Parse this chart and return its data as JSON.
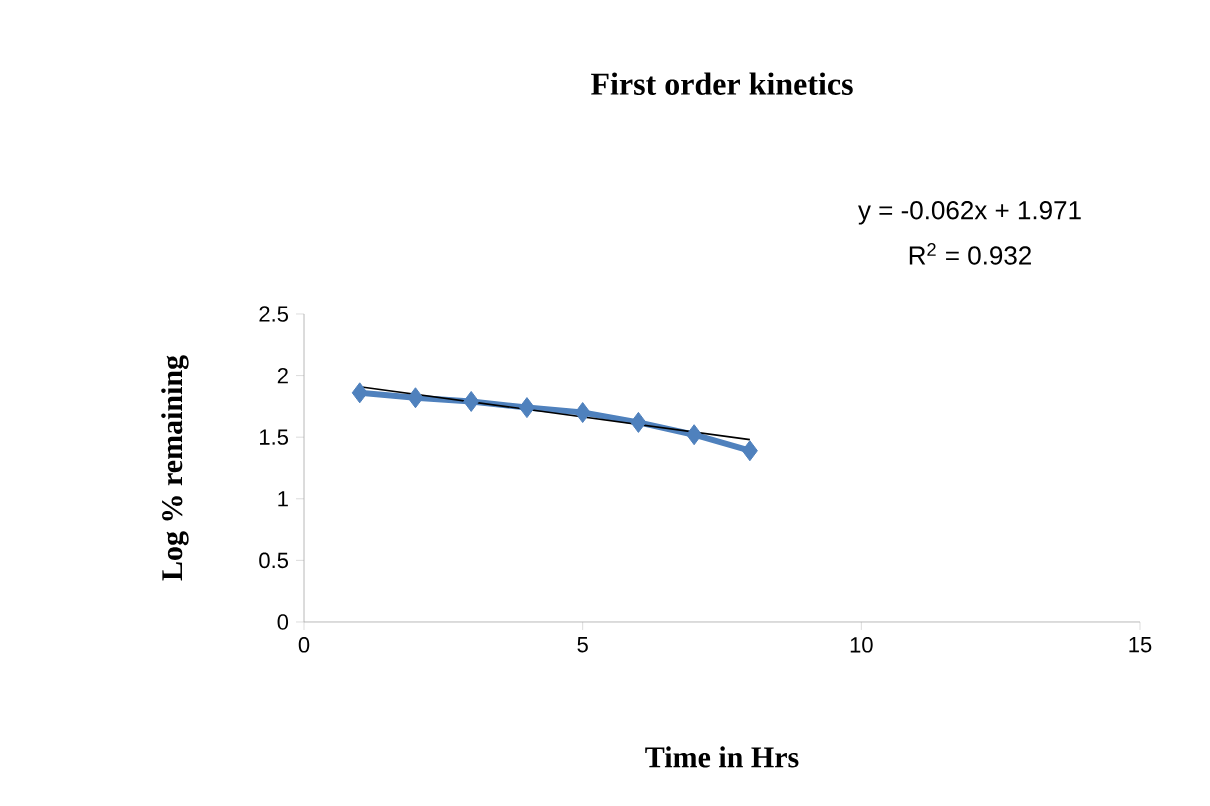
{
  "chart_data": {
    "type": "line",
    "title": "First order kinetics",
    "xlabel": "Time in Hrs",
    "ylabel": "Log % remaining",
    "annotations": [
      "y = -0.062x + 1.971",
      "R$^{2}$ = 0.932"
    ],
    "x": [
      1,
      2,
      3,
      4,
      5,
      6,
      7,
      8
    ],
    "series": [
      {
        "color": "#4f81bd",
        "marker": "diamond",
        "values": [
          1.86,
          1.82,
          1.79,
          1.74,
          1.7,
          1.62,
          1.52,
          1.39
        ]
      },
      {
        "type": "line",
        "color": "#000000",
        "marker": "none",
        "x": [
          1,
          8
        ],
        "values": [
          1.91,
          1.48
        ]
      }
    ],
    "xlim": [
      0,
      15
    ],
    "xticks": [
      0,
      5,
      10,
      15
    ],
    "ylim": [
      0,
      2.5
    ],
    "yticks": [
      0,
      0.5,
      1,
      1.5,
      2,
      2.5
    ],
    "grid": false,
    "legend": false
  }
}
